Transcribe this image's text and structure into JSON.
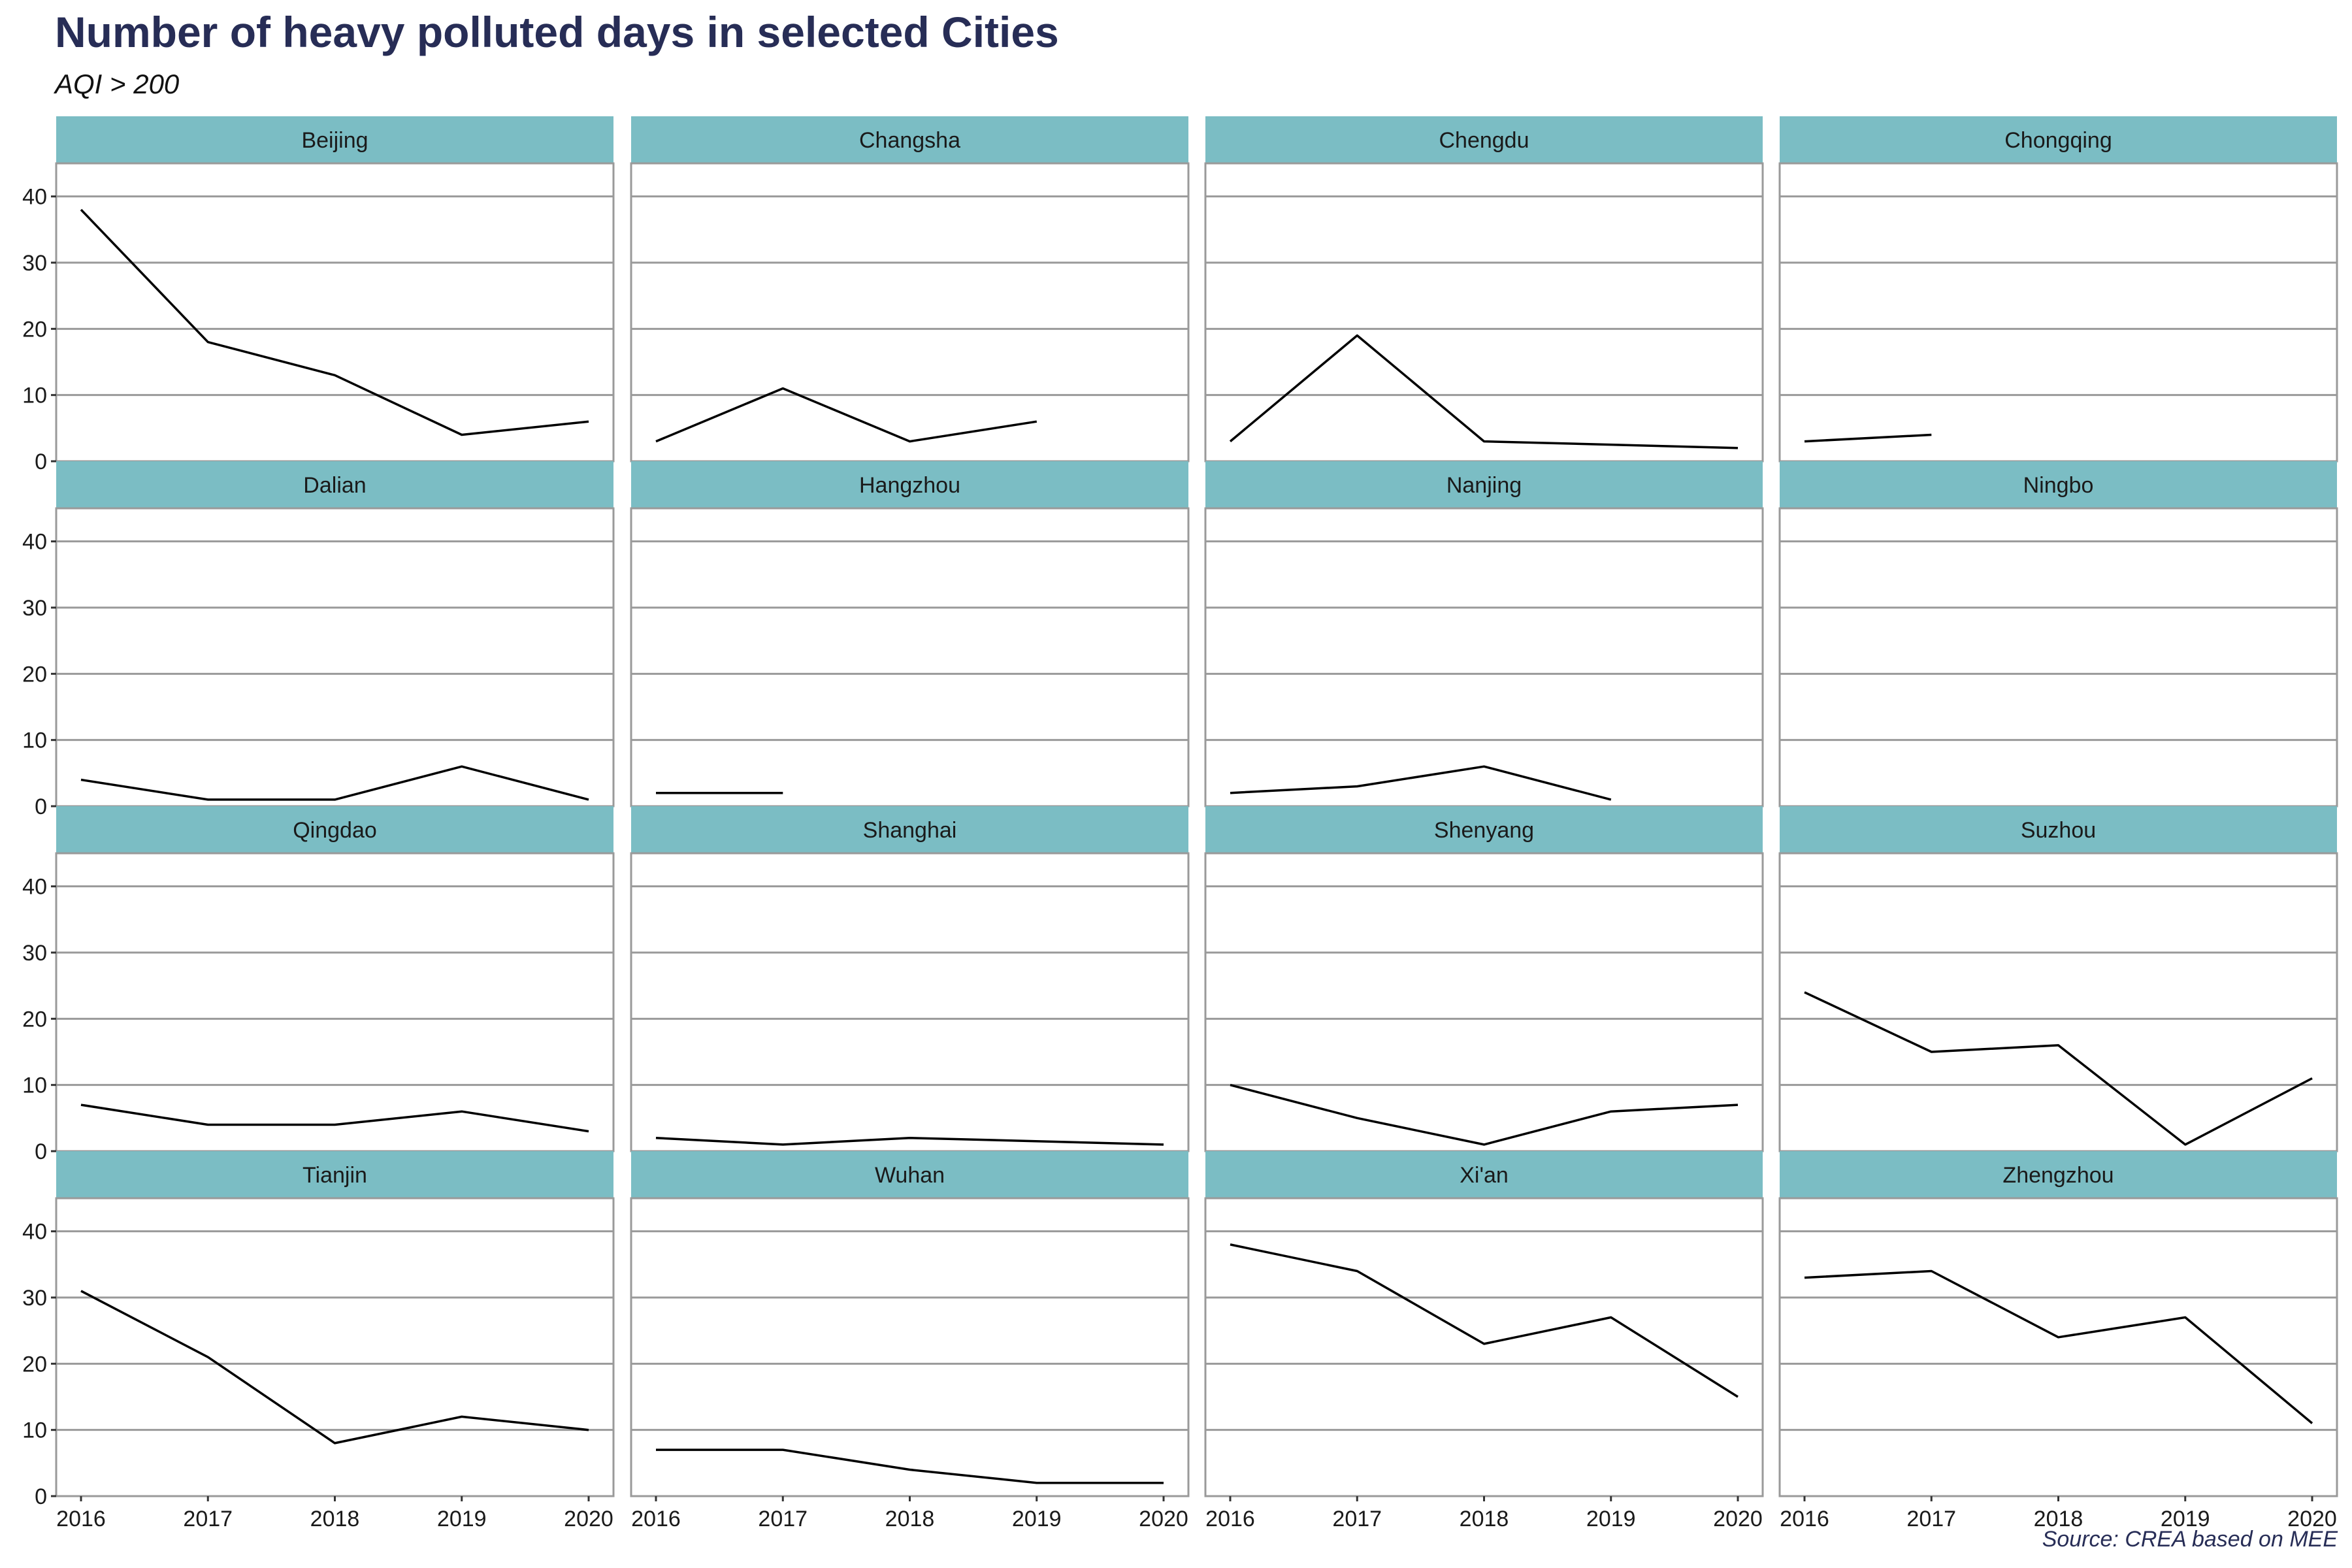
{
  "title": "Number of heavy polluted days in selected Cities",
  "subtitle": "AQI > 200",
  "caption": "Source: CREA based on MEE",
  "colors": {
    "title": "#272d56",
    "strip": "#7bbdc4",
    "line": "#000000",
    "grid": "#9a9a9a",
    "panel_border": "#9a9a9a"
  },
  "chart_data": {
    "type": "line",
    "layout": "facet-grid 4x4",
    "x_ticks": [
      "2016",
      "2017",
      "2018",
      "2019",
      "2020"
    ],
    "xlim": [
      2016,
      2020
    ],
    "y_ticks": [
      "0",
      "10",
      "20",
      "30",
      "40"
    ],
    "ylim": [
      0,
      45
    ],
    "grid": "horizontal",
    "facets": [
      {
        "name": "Beijing",
        "points": [
          [
            2016,
            38
          ],
          [
            2017,
            18
          ],
          [
            2018,
            13
          ],
          [
            2019,
            4
          ],
          [
            2020,
            6
          ]
        ]
      },
      {
        "name": "Changsha",
        "points": [
          [
            2016,
            3
          ],
          [
            2017,
            11
          ],
          [
            2018,
            3
          ],
          [
            2019,
            6
          ]
        ]
      },
      {
        "name": "Chengdu",
        "points": [
          [
            2016,
            3
          ],
          [
            2017,
            19
          ],
          [
            2018,
            3
          ],
          [
            2020,
            2
          ]
        ]
      },
      {
        "name": "Chongqing",
        "points": [
          [
            2016,
            3
          ],
          [
            2017,
            4
          ]
        ]
      },
      {
        "name": "Dalian",
        "points": [
          [
            2016,
            4
          ],
          [
            2017,
            1
          ],
          [
            2018,
            1
          ],
          [
            2019,
            6
          ],
          [
            2020,
            1
          ]
        ]
      },
      {
        "name": "Hangzhou",
        "points": [
          [
            2016,
            2
          ],
          [
            2017,
            2
          ]
        ]
      },
      {
        "name": "Nanjing",
        "points": [
          [
            2016,
            2
          ],
          [
            2017,
            3
          ],
          [
            2018,
            6
          ],
          [
            2019,
            1
          ]
        ]
      },
      {
        "name": "Ningbo",
        "points": []
      },
      {
        "name": "Qingdao",
        "points": [
          [
            2016,
            7
          ],
          [
            2017,
            4
          ],
          [
            2018,
            4
          ],
          [
            2019,
            6
          ],
          [
            2020,
            3
          ]
        ]
      },
      {
        "name": "Shanghai",
        "points": [
          [
            2016,
            2
          ],
          [
            2017,
            1
          ],
          [
            2018,
            2
          ],
          [
            2020,
            1
          ]
        ]
      },
      {
        "name": "Shenyang",
        "points": [
          [
            2016,
            10
          ],
          [
            2017,
            5
          ],
          [
            2018,
            1
          ],
          [
            2019,
            6
          ],
          [
            2020,
            7
          ]
        ]
      },
      {
        "name": "Suzhou",
        "points": [
          [
            2016,
            24
          ],
          [
            2017,
            15
          ],
          [
            2018,
            16
          ],
          [
            2019,
            1
          ],
          [
            2020,
            11
          ]
        ]
      },
      {
        "name": "Tianjin",
        "points": [
          [
            2016,
            31
          ],
          [
            2017,
            21
          ],
          [
            2018,
            8
          ],
          [
            2019,
            12
          ],
          [
            2020,
            10
          ]
        ]
      },
      {
        "name": "Wuhan",
        "points": [
          [
            2016,
            7
          ],
          [
            2017,
            7
          ],
          [
            2018,
            4
          ],
          [
            2019,
            2
          ],
          [
            2020,
            2
          ]
        ]
      },
      {
        "name": "Xi'an",
        "points": [
          [
            2016,
            38
          ],
          [
            2017,
            34
          ],
          [
            2018,
            23
          ],
          [
            2019,
            27
          ],
          [
            2020,
            15
          ]
        ]
      },
      {
        "name": "Zhengzhou",
        "points": [
          [
            2016,
            33
          ],
          [
            2017,
            34
          ],
          [
            2018,
            24
          ],
          [
            2019,
            27
          ],
          [
            2020,
            11
          ]
        ]
      }
    ]
  }
}
